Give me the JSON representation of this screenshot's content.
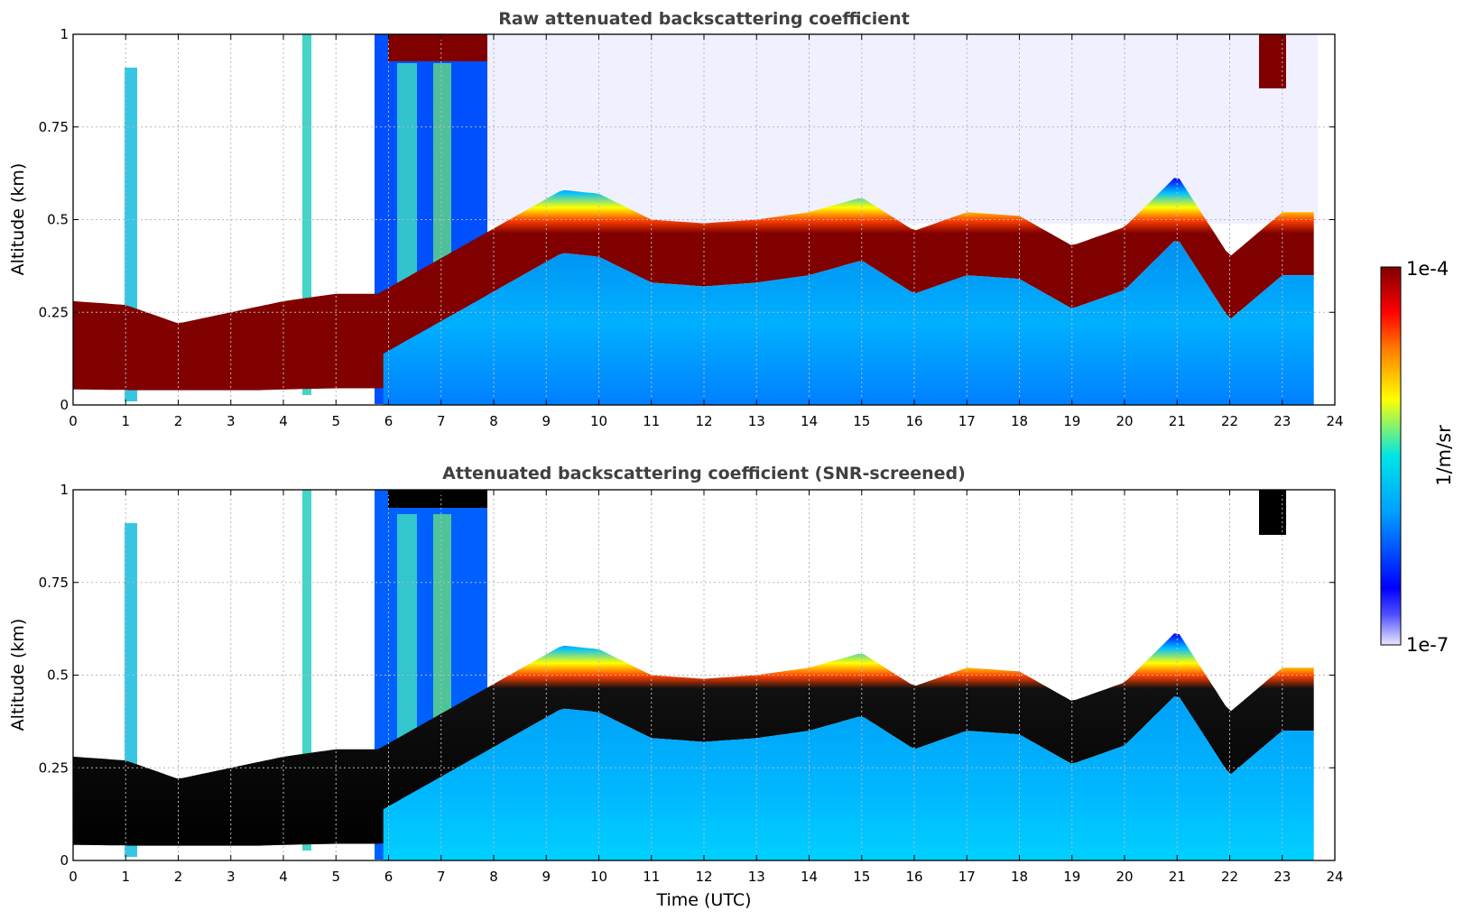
{
  "chart_data": [
    {
      "type": "heatmap",
      "title": "Raw attenuated backscattering coefficient",
      "xlabel": "",
      "ylabel": "Altitude (km)",
      "xlim": [
        0,
        24
      ],
      "ylim": [
        0,
        1
      ],
      "xticks": [
        "0",
        "1",
        "2",
        "3",
        "4",
        "5",
        "6",
        "7",
        "8",
        "9",
        "10",
        "11",
        "12",
        "13",
        "14",
        "15",
        "16",
        "17",
        "18",
        "19",
        "20",
        "21",
        "22",
        "23",
        "24"
      ],
      "yticks": [
        "0",
        "0.25",
        "0.5",
        "0.75",
        "1"
      ],
      "grid": true,
      "boundary_layer_top_km": [
        [
          0,
          0.28
        ],
        [
          1,
          0.27
        ],
        [
          2,
          0.22
        ],
        [
          3,
          0.25
        ],
        [
          4,
          0.28
        ],
        [
          5,
          0.3
        ],
        [
          5.8,
          0.3
        ],
        [
          9.3,
          0.58
        ],
        [
          10,
          0.57
        ],
        [
          11,
          0.5
        ],
        [
          12,
          0.49
        ],
        [
          13,
          0.5
        ],
        [
          14,
          0.52
        ],
        [
          15,
          0.56
        ],
        [
          16,
          0.47
        ],
        [
          17,
          0.52
        ],
        [
          18,
          0.51
        ],
        [
          19,
          0.43
        ],
        [
          20,
          0.48
        ],
        [
          21,
          0.62
        ],
        [
          22,
          0.4
        ],
        [
          23,
          0.52
        ],
        [
          23.6,
          0.52
        ]
      ]
    },
    {
      "type": "heatmap",
      "title": "Attenuated backscattering coefficient (SNR-screened)",
      "xlabel": "Time (UTC)",
      "ylabel": "Altitude (km)",
      "xlim": [
        0,
        24
      ],
      "ylim": [
        0,
        1
      ],
      "xticks": [
        "0",
        "1",
        "2",
        "3",
        "4",
        "5",
        "6",
        "7",
        "8",
        "9",
        "10",
        "11",
        "12",
        "13",
        "14",
        "15",
        "16",
        "17",
        "18",
        "19",
        "20",
        "21",
        "22",
        "23",
        "24"
      ],
      "yticks": [
        "0",
        "0.25",
        "0.5",
        "0.75",
        "1"
      ],
      "grid": true
    }
  ],
  "colorbar": {
    "label": "1/m/sr",
    "max_label": "1e-4",
    "min_label": "1e-7",
    "stops": [
      "#e8e8ff",
      "#0000ff",
      "#00a0ff",
      "#00e5e5",
      "#ffff00",
      "#ff7f00",
      "#ff0000",
      "#800000"
    ]
  }
}
